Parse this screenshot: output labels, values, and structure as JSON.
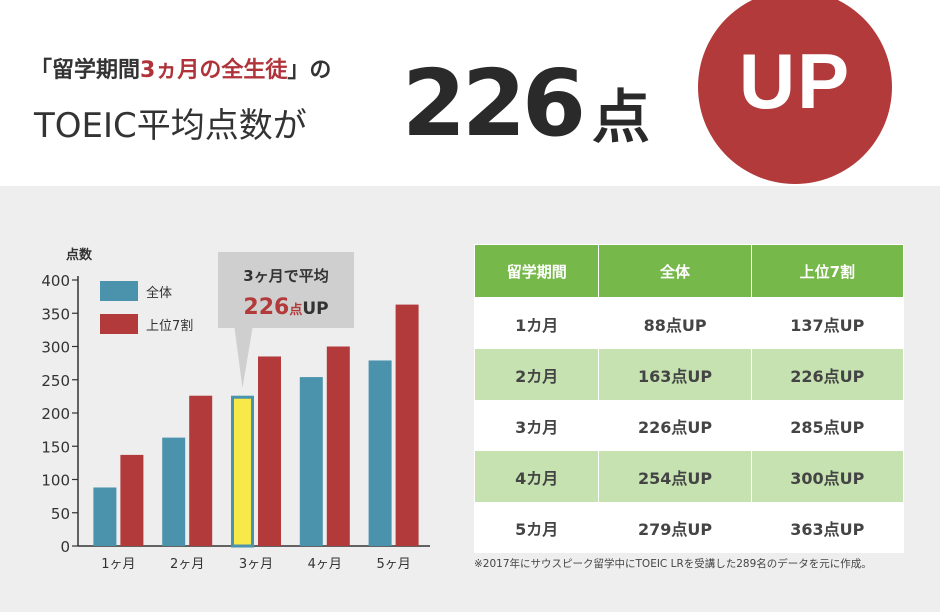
{
  "header": {
    "line1_open": "「留学期間",
    "line1_accent": "3ヵ月の全生徒",
    "line1_close": "」の",
    "line2": "TOEIC平均点数が",
    "big_number": "226",
    "big_unit": "点",
    "badge": "UP",
    "badge_color": "#b33a3a",
    "accent_color": "#b0333a"
  },
  "chart_data": {
    "type": "bar",
    "ylabel": "点数",
    "ylim": [
      0,
      400
    ],
    "yticks": [
      "400",
      "350",
      "300",
      "250",
      "200",
      "150",
      "100",
      "50",
      "0"
    ],
    "categories": [
      "1ヶ月",
      "2ヶ月",
      "3ヶ月",
      "4ヶ月",
      "5ヶ月"
    ],
    "series": [
      {
        "name": "全体",
        "values": [
          88,
          163,
          226,
          254,
          279
        ],
        "color": "#4b93ad"
      },
      {
        "name": "上位7割",
        "values": [
          137,
          226,
          285,
          300,
          363
        ],
        "color": "#b33a3a"
      }
    ],
    "highlight": {
      "category_index": 2,
      "series_index": 0,
      "fill": "#f7e94a",
      "stroke": "#4b93ad"
    },
    "callout": {
      "line1": "3ヶ月で平均",
      "number": "226",
      "unit": "点",
      "suffix": "UP"
    },
    "legend_position": "top-left"
  },
  "table": {
    "headers": [
      "留学期間",
      "全体",
      "上位7割"
    ],
    "rows": [
      [
        "1カ月",
        "88点UP",
        "137点UP"
      ],
      [
        "2カ月",
        "163点UP",
        "226点UP"
      ],
      [
        "3カ月",
        "226点UP",
        "285点UP"
      ],
      [
        "4カ月",
        "254点UP",
        "300点UP"
      ],
      [
        "5カ月",
        "279点UP",
        "363点UP"
      ]
    ]
  },
  "note": "※2017年にサウスピーク留学中にTOEIC LRを受講した289名のデータを元に作成。"
}
